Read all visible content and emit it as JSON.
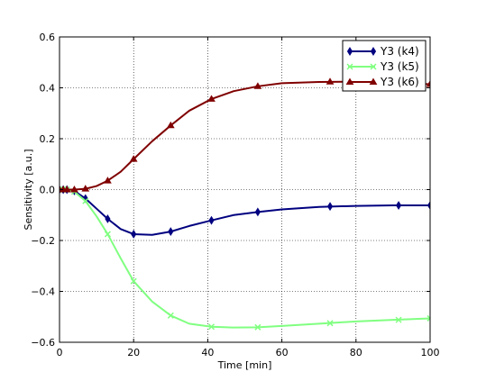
{
  "chart_data": {
    "type": "line",
    "xlabel": "Time [min]",
    "ylabel": "Sensitivity [a.u.]",
    "xlim": [
      0,
      100
    ],
    "ylim": [
      -0.6,
      0.6
    ],
    "xticks": [
      0,
      20,
      40,
      60,
      80,
      100
    ],
    "yticks": [
      -0.6,
      -0.4,
      -0.2,
      0.0,
      0.2,
      0.4,
      0.6
    ],
    "xtick_labels": [
      "0",
      "20",
      "40",
      "60",
      "80",
      "100"
    ],
    "ytick_labels": [
      "−0.6",
      "−0.4",
      "−0.2",
      "0.0",
      "0.2",
      "0.4",
      "0.6"
    ],
    "grid": true,
    "legend_position": "top-right",
    "series": [
      {
        "name": "Y3 (k4)",
        "color": "#000080",
        "marker": "diamond",
        "x": [
          0,
          1,
          2,
          4,
          7,
          10,
          13,
          16.5,
          20,
          25,
          30,
          35,
          41,
          47,
          53.5,
          60,
          70,
          80,
          90,
          100
        ],
        "y": [
          0.0,
          0.0,
          0.0,
          -0.005,
          -0.035,
          -0.075,
          -0.115,
          -0.155,
          -0.175,
          -0.178,
          -0.165,
          -0.143,
          -0.121,
          -0.1,
          -0.088,
          -0.078,
          -0.068,
          -0.064,
          -0.062,
          -0.062
        ],
        "marker_x": [
          0,
          1,
          2,
          4,
          7,
          13,
          20,
          30,
          41,
          53.5,
          73,
          91.5,
          100
        ],
        "marker_y": [
          0.0,
          0.0,
          0.0,
          -0.005,
          -0.035,
          -0.115,
          -0.175,
          -0.165,
          -0.121,
          -0.088,
          -0.066,
          -0.062,
          -0.062
        ]
      },
      {
        "name": "Y3 (k5)",
        "color": "#80ff80",
        "marker": "x",
        "x": [
          0,
          1,
          2,
          4,
          7,
          10,
          13,
          16.5,
          20,
          25,
          30,
          35,
          41,
          47,
          53.5,
          60,
          70,
          80,
          90,
          100
        ],
        "y": [
          0.0,
          0.0,
          0.0,
          -0.008,
          -0.045,
          -0.105,
          -0.175,
          -0.27,
          -0.36,
          -0.44,
          -0.495,
          -0.527,
          -0.539,
          -0.542,
          -0.541,
          -0.536,
          -0.527,
          -0.518,
          -0.512,
          -0.506
        ],
        "marker_x": [
          0,
          1,
          2,
          4,
          7,
          13,
          20,
          30,
          41,
          53.5,
          73,
          91.5,
          100
        ],
        "marker_y": [
          0.0,
          0.0,
          0.0,
          -0.008,
          -0.045,
          -0.175,
          -0.36,
          -0.495,
          -0.539,
          -0.541,
          -0.525,
          -0.512,
          -0.506
        ]
      },
      {
        "name": "Y3 (k6)",
        "color": "#800000",
        "marker": "triangle",
        "x": [
          0,
          1,
          2,
          4,
          7,
          10,
          13,
          16.5,
          20,
          25,
          30,
          35,
          41,
          47,
          53.5,
          60,
          70,
          80,
          90,
          100
        ],
        "y": [
          0.0,
          0.0,
          0.0,
          0.0,
          0.003,
          0.014,
          0.035,
          0.07,
          0.12,
          0.19,
          0.252,
          0.31,
          0.356,
          0.387,
          0.406,
          0.418,
          0.423,
          0.424,
          0.42,
          0.414
        ],
        "marker_x": [
          0,
          1,
          2,
          4,
          7,
          13,
          20,
          30,
          41,
          53.5,
          73,
          91.5,
          100
        ],
        "marker_y": [
          0.0,
          0.0,
          0.0,
          0.0,
          0.003,
          0.035,
          0.12,
          0.252,
          0.356,
          0.406,
          0.424,
          0.42,
          0.414
        ]
      }
    ]
  }
}
